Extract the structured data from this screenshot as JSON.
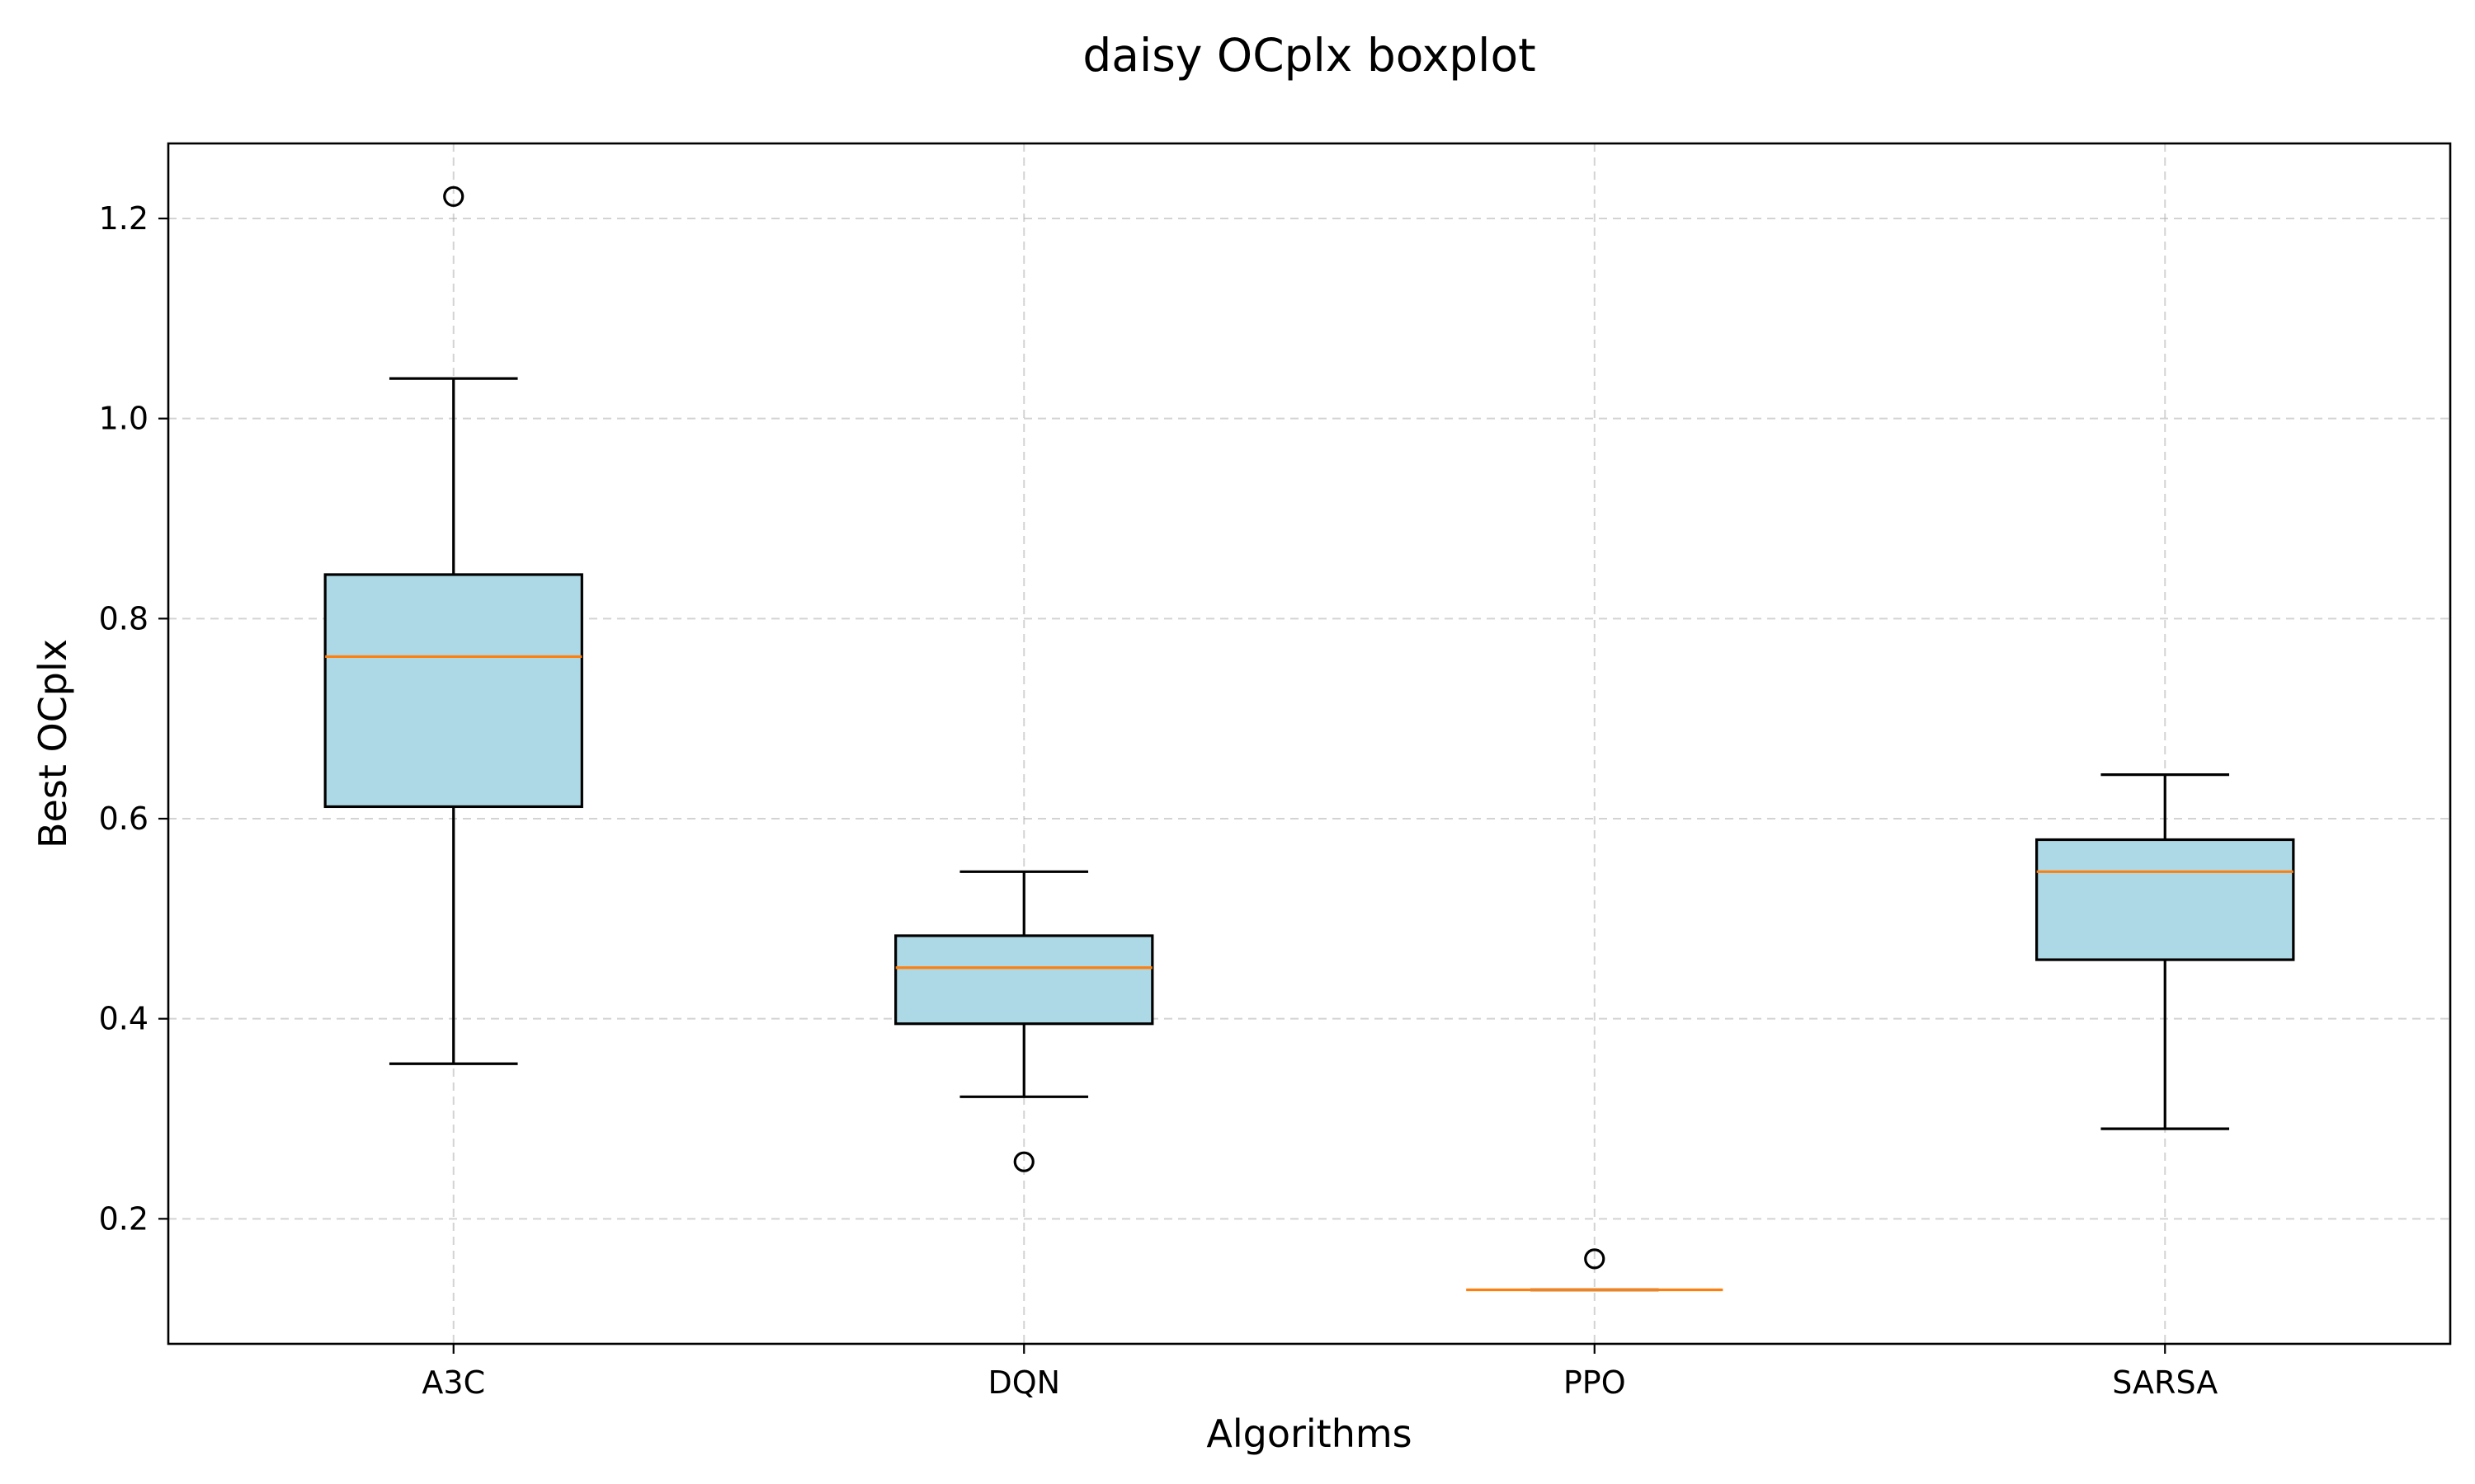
{
  "chart_data": {
    "type": "boxplot",
    "title": "daisy OCplx boxplot",
    "xlabel": "Algorithms",
    "ylabel": "Best OCplx",
    "ylim": [
      0.075,
      1.275
    ],
    "yticks": [
      0.2,
      0.4,
      0.6,
      0.8,
      1.0,
      1.2
    ],
    "ytick_labels": [
      "0.2",
      "0.4",
      "0.6",
      "0.8",
      "1.0",
      "1.2"
    ],
    "grid": true,
    "colors": {
      "box_fill": "#add8e6",
      "median": "#ff7f0e",
      "edge": "#000000",
      "grid": "#b0b0b0"
    },
    "categories": [
      "A3C",
      "DQN",
      "PPO",
      "SARSA"
    ],
    "boxes": [
      {
        "label": "A3C",
        "whisker_low": 0.355,
        "q1": 0.612,
        "median": 0.762,
        "q3": 0.844,
        "whisker_high": 1.04,
        "outliers": [
          1.222
        ]
      },
      {
        "label": "DQN",
        "whisker_low": 0.322,
        "q1": 0.395,
        "median": 0.451,
        "q3": 0.483,
        "whisker_high": 0.547,
        "outliers": [
          0.257
        ]
      },
      {
        "label": "PPO",
        "whisker_low": 0.129,
        "q1": 0.129,
        "median": 0.129,
        "q3": 0.129,
        "whisker_high": 0.129,
        "outliers": [
          0.16
        ]
      },
      {
        "label": "SARSA",
        "whisker_low": 0.29,
        "q1": 0.459,
        "median": 0.547,
        "q3": 0.579,
        "whisker_high": 0.644,
        "outliers": []
      }
    ]
  }
}
